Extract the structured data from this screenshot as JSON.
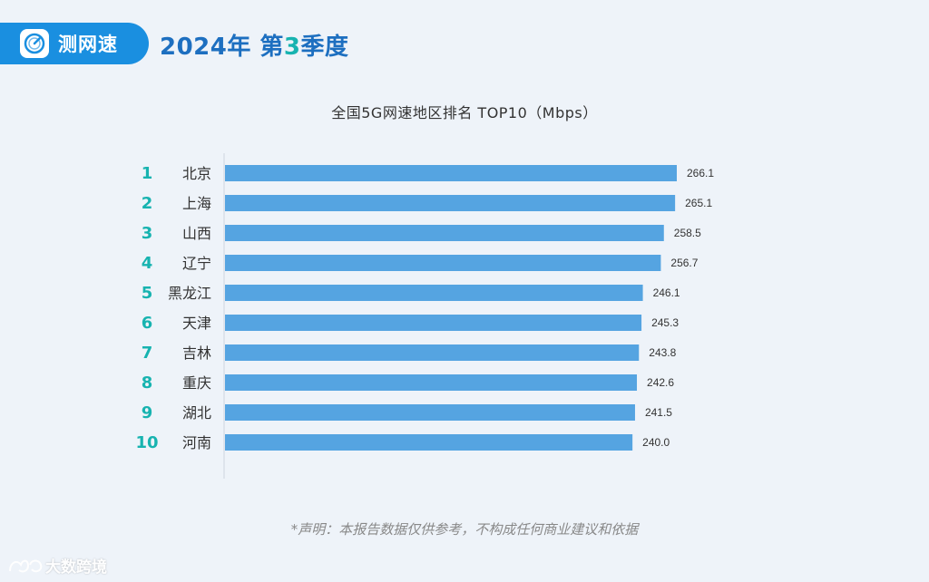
{
  "header": {
    "brand_name": "测网速",
    "headline_prefix": "2024年 第",
    "headline_quarter": "3",
    "headline_suffix": "季度"
  },
  "chart_data": {
    "type": "bar",
    "orientation": "horizontal",
    "title": "全国5G网速地区排名 TOP10（Mbps）",
    "ranks": [
      "1",
      "2",
      "3",
      "4",
      "5",
      "6",
      "7",
      "8",
      "9",
      "10"
    ],
    "categories": [
      "北京",
      "上海",
      "山西",
      "辽宁",
      "黑龙江",
      "天津",
      "吉林",
      "重庆",
      "湖北",
      "河南"
    ],
    "values": [
      266.1,
      265.1,
      258.5,
      256.7,
      246.1,
      245.3,
      243.8,
      242.6,
      241.5,
      240.0
    ],
    "value_labels": [
      "266.1",
      "265.1",
      "258.5",
      "256.7",
      "246.1",
      "245.3",
      "243.8",
      "242.6",
      "241.5",
      "240.0"
    ],
    "xlim": [
      0,
      266.1
    ],
    "grid": false,
    "colors": {
      "bar": "#55a4e1",
      "rank": "#17b3b0"
    }
  },
  "footnote": "*声明：本报告数据仅供参考，不构成任何商业建议和依据",
  "watermark": "大数跨境",
  "colors": {
    "brand": "#1a8fe0",
    "headline": "#1d6fc0",
    "accent": "#17b3b0",
    "background": "#eef3f9"
  }
}
